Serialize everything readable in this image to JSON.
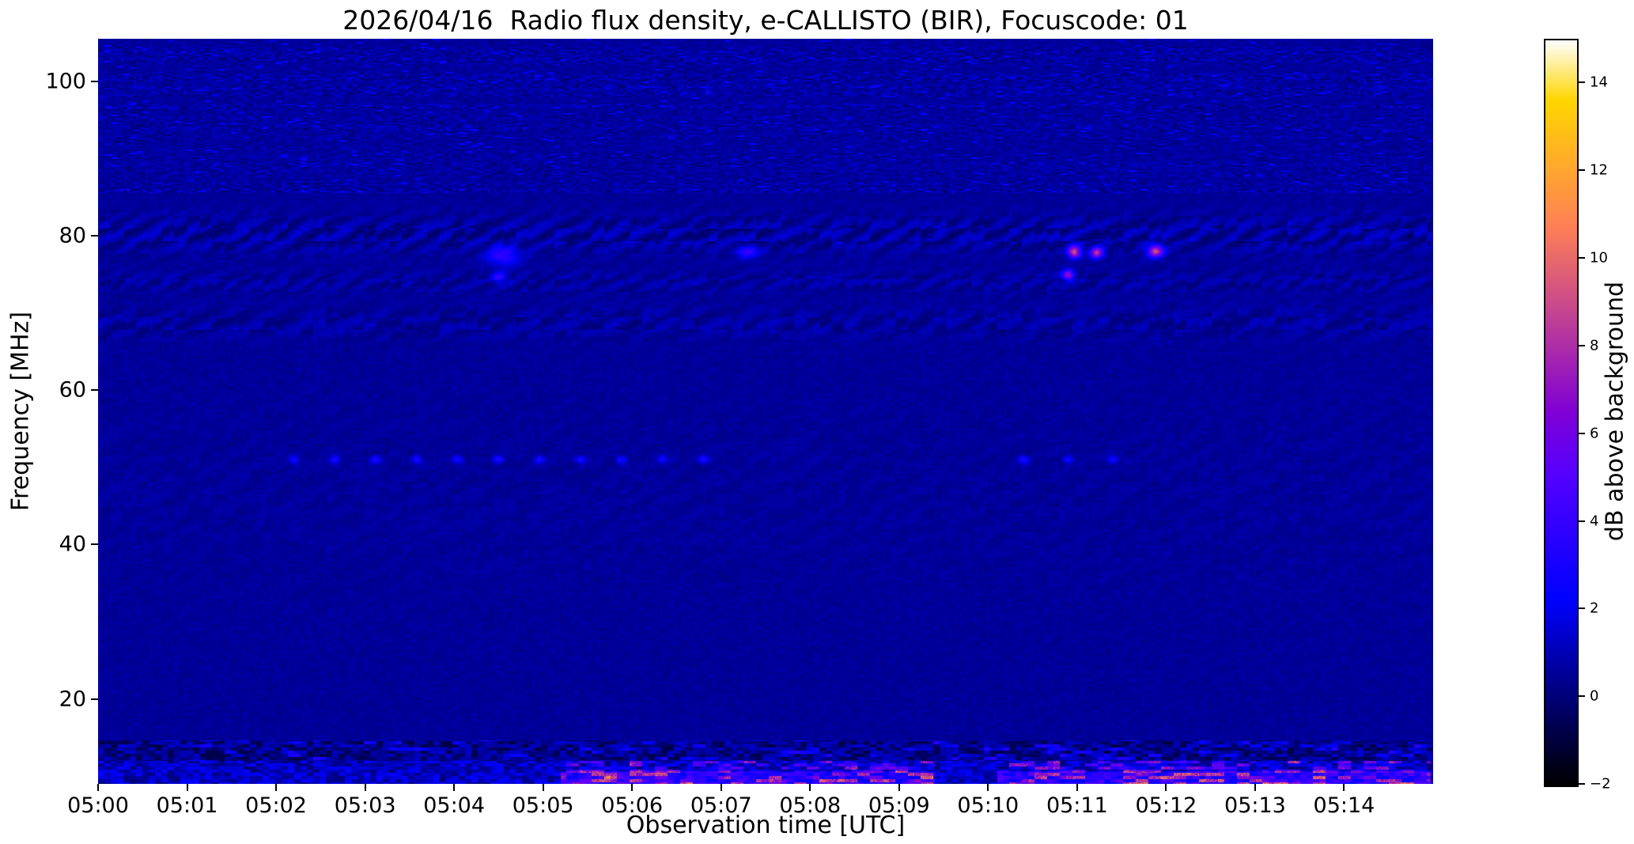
{
  "figure": {
    "background": "#ffffff",
    "text_color": "#000000"
  },
  "chart_data": {
    "type": "heatmap",
    "title": "2026/04/16  Radio flux density, e-CALLISTO (BIR), Focuscode: 01",
    "xlabel": "Observation time [UTC]",
    "ylabel": "Frequency [MHz]",
    "colorbar_label": "dB above background",
    "colormap": "gnuplot2",
    "value_range_db": [
      -2,
      15
    ],
    "colorbar_tick_values": [
      -2,
      0,
      2,
      4,
      6,
      8,
      10,
      12,
      14
    ],
    "colorbar_tick_labels": [
      "−2",
      "0",
      "2",
      "4",
      "6",
      "8",
      "10",
      "12",
      "14"
    ],
    "xlim_minutes": [
      0,
      15
    ],
    "x_tick_labels": [
      "05:00",
      "05:01",
      "05:02",
      "05:03",
      "05:04",
      "05:05",
      "05:06",
      "05:07",
      "05:08",
      "05:09",
      "05:10",
      "05:11",
      "05:12",
      "05:13",
      "05:14"
    ],
    "ylim_mhz": [
      9,
      105.5
    ],
    "y_tick_values": [
      20,
      40,
      60,
      80,
      100
    ],
    "y_tick_labels": [
      "20",
      "40",
      "60",
      "80",
      "100"
    ],
    "render": {
      "base_db": 0.55,
      "noise_db": 0.5,
      "noise2_db": 0.35,
      "top_band": {
        "f_min": 85.5,
        "speckle_offset": 0.38,
        "row_amp_min": 0.5,
        "row_amp_var": 1.4,
        "bright_dash_thresh": 0.975,
        "bright_dash_db": 1.4
      },
      "diag": [
        {
          "fc": 80.2,
          "hw": 2.6,
          "amp": 1.5,
          "m": 0.55,
          "period": 26
        },
        {
          "fc": 74.0,
          "hw": 1.5,
          "amp": 1.0,
          "m": 0.5,
          "period": 22
        },
        {
          "fc": 68.7,
          "hw": 2.2,
          "amp": 1.0,
          "m": 0.45,
          "period": 30
        },
        {
          "fc": 47.0,
          "hw": 13.0,
          "amp": 0.3,
          "m": 0.5,
          "period": 34
        }
      ],
      "bottom": {
        "f_max": 14.6,
        "f_mid": 12.0,
        "f_glow": 10.6,
        "dark_base": 0.45,
        "dark_amp": 2.4,
        "bright_base": 1.1,
        "bright_amp": 2.6,
        "pink_segments": [
          [
            5.2,
            9.4
          ],
          [
            10.1,
            14.97
          ]
        ],
        "pink_thresh": 0.55,
        "pink_gain": 16,
        "glow_db": 2.2
      },
      "dots": {
        "f": 51.0,
        "sf": 0.35,
        "st": 0.04,
        "db": 2.6,
        "groups": [
          {
            "start": 2.2,
            "end": 7.2,
            "step": 0.46
          },
          {
            "start": 10.4,
            "end": 11.5,
            "step": 0.5
          }
        ]
      },
      "spots": [
        {
          "t": 10.97,
          "f": 77.9,
          "st": 0.05,
          "sf": 0.55,
          "db": 8.5
        },
        {
          "t": 11.22,
          "f": 77.8,
          "st": 0.05,
          "sf": 0.5,
          "db": 7.5
        },
        {
          "t": 11.88,
          "f": 78.0,
          "st": 0.06,
          "sf": 0.55,
          "db": 8.5
        },
        {
          "t": 10.9,
          "f": 74.9,
          "st": 0.045,
          "sf": 0.45,
          "db": 6.5
        },
        {
          "t": 4.55,
          "f": 77.4,
          "st": 0.13,
          "sf": 0.9,
          "db": 3.2
        },
        {
          "t": 4.5,
          "f": 74.6,
          "st": 0.06,
          "sf": 0.5,
          "db": 3.0
        },
        {
          "t": 7.3,
          "f": 77.9,
          "st": 0.09,
          "sf": 0.6,
          "db": 3.0
        }
      ]
    }
  }
}
